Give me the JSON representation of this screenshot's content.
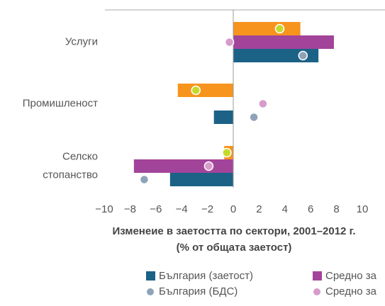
{
  "chart_data": {
    "type": "hbar",
    "categories": [
      [
        "Услуги"
      ],
      [
        "Промишленост"
      ],
      [
        "Селско",
        "стопанство"
      ]
    ],
    "xlabel": [
      "Изменеие в заетостта по сектори, 2001–2012 г.",
      "(% от общата заетост)"
    ],
    "xlim": [
      -10,
      10
    ],
    "xticks": [
      {
        "value": -10,
        "label": "−10"
      },
      {
        "value": -8,
        "label": "−8"
      },
      {
        "value": -6,
        "label": "−6"
      },
      {
        "value": -4,
        "label": "−4"
      },
      {
        "value": -2,
        "label": "−2"
      },
      0,
      2,
      4,
      6,
      8,
      10
    ],
    "series": [
      {
        "marker": "bar",
        "color": "#f7941d",
        "values": [
          5.2,
          -4.3,
          -0.7
        ]
      },
      {
        "name": "Средно за",
        "marker": "bar",
        "color": "#a3449b",
        "values": [
          7.8,
          null,
          -7.7
        ]
      },
      {
        "name": "България (заетост)",
        "marker": "bar",
        "color": "#1b6286",
        "values": [
          6.6,
          -1.5,
          -4.9
        ]
      },
      {
        "marker": "dot",
        "color": "#c5d92d",
        "values": [
          3.6,
          -2.9,
          -0.5
        ]
      },
      {
        "name": "Средно за",
        "marker": "dot",
        "color": "#d79bcc",
        "values": [
          -0.3,
          2.3,
          -1.9
        ]
      },
      {
        "name": "България (БДС)",
        "marker": "dot",
        "color": "#8fa3b8",
        "values": [
          5.4,
          1.6,
          -6.9
        ]
      }
    ]
  }
}
